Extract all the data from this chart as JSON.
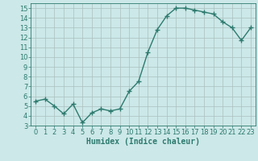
{
  "x": [
    0,
    1,
    2,
    3,
    4,
    5,
    6,
    7,
    8,
    9,
    10,
    11,
    12,
    13,
    14,
    15,
    16,
    17,
    18,
    19,
    20,
    21,
    22,
    23
  ],
  "y": [
    5.5,
    5.7,
    5.0,
    4.2,
    5.2,
    3.3,
    4.3,
    4.7,
    4.5,
    4.7,
    6.5,
    7.5,
    10.5,
    12.8,
    14.2,
    15.0,
    15.0,
    14.8,
    14.6,
    14.4,
    13.6,
    13.0,
    11.7,
    13.0
  ],
  "xlabel": "Humidex (Indice chaleur)",
  "line_color": "#2d7a6e",
  "marker": "+",
  "marker_size": 4.0,
  "line_width": 1.0,
  "bg_color": "#cce8e8",
  "grid_color": "#aabfbf",
  "tick_label_color": "#2d7a6e",
  "xlabel_color": "#2d7a6e",
  "ylim": [
    3,
    15.5
  ],
  "xlim": [
    -0.5,
    23.5
  ],
  "yticks": [
    3,
    4,
    5,
    6,
    7,
    8,
    9,
    10,
    11,
    12,
    13,
    14,
    15
  ],
  "xticks": [
    0,
    1,
    2,
    3,
    4,
    5,
    6,
    7,
    8,
    9,
    10,
    11,
    12,
    13,
    14,
    15,
    16,
    17,
    18,
    19,
    20,
    21,
    22,
    23
  ],
  "tick_fontsize": 6,
  "xlabel_fontsize": 7
}
